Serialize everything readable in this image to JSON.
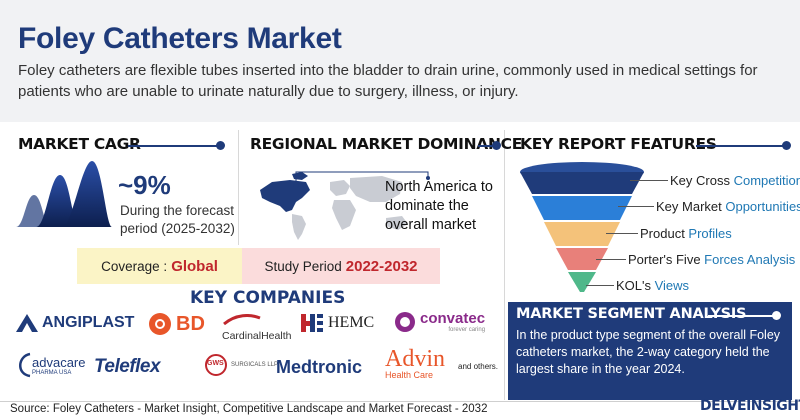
{
  "header": {
    "title": "Foley Catheters Market",
    "description": "Foley catheters are flexible tubes inserted into the bladder to drain urine, commonly used in medical settings for patients who are unable to urinate naturally due to surgery, illness, or injury."
  },
  "cagr": {
    "title": "MARKET CAGR",
    "value": "~9%",
    "text": "During the forecast period (2025-2032)"
  },
  "regional": {
    "title": "REGIONAL MARKET DOMINANCE",
    "text": "North America to dominate the overall market"
  },
  "coverage": {
    "label": "Coverage :",
    "value": "Global"
  },
  "study_period": {
    "label": "Study Period",
    "value": "2022-2032"
  },
  "companies": {
    "title": "KEY COMPANIES",
    "row1": [
      "ANGIPLAST",
      "BD",
      "CardinalHealth",
      "HEMC",
      "convatec"
    ],
    "convatec_tag": "forever caring",
    "row2": [
      "advacare",
      "Teleflex",
      "GWS",
      "Medtronic",
      "Advin"
    ],
    "advacare_tag": "PHARMA USA",
    "gws_tag": "SURGICALS LLP",
    "advin_tag": "Health Care",
    "others": "and others."
  },
  "features": {
    "title": "KEY REPORT FEATURES",
    "items": [
      {
        "a": "Key Cross ",
        "b": "Competition"
      },
      {
        "a": "Key Market ",
        "b": "Opportunities"
      },
      {
        "a": "Product ",
        "b": "Profiles"
      },
      {
        "a": "Porter's Five ",
        "b": "Forces Analysis"
      },
      {
        "a": "KOL's ",
        "b": "Views"
      }
    ],
    "colors": [
      "#1f3b7a",
      "#2b7fd8",
      "#f4c27a",
      "#e8807a",
      "#4fb88a"
    ]
  },
  "segment": {
    "title": "MARKET SEGMENT ANALYSIS",
    "text": "In the product type segment of the overall Foley catheters market, the 2-way category held the largest share in the year 2024."
  },
  "footer": {
    "source": "Source: Foley Catheters - Market Insight, Competitive Landscape and Market Forecast - 2032",
    "brand": "DELVEINSIGHT"
  }
}
